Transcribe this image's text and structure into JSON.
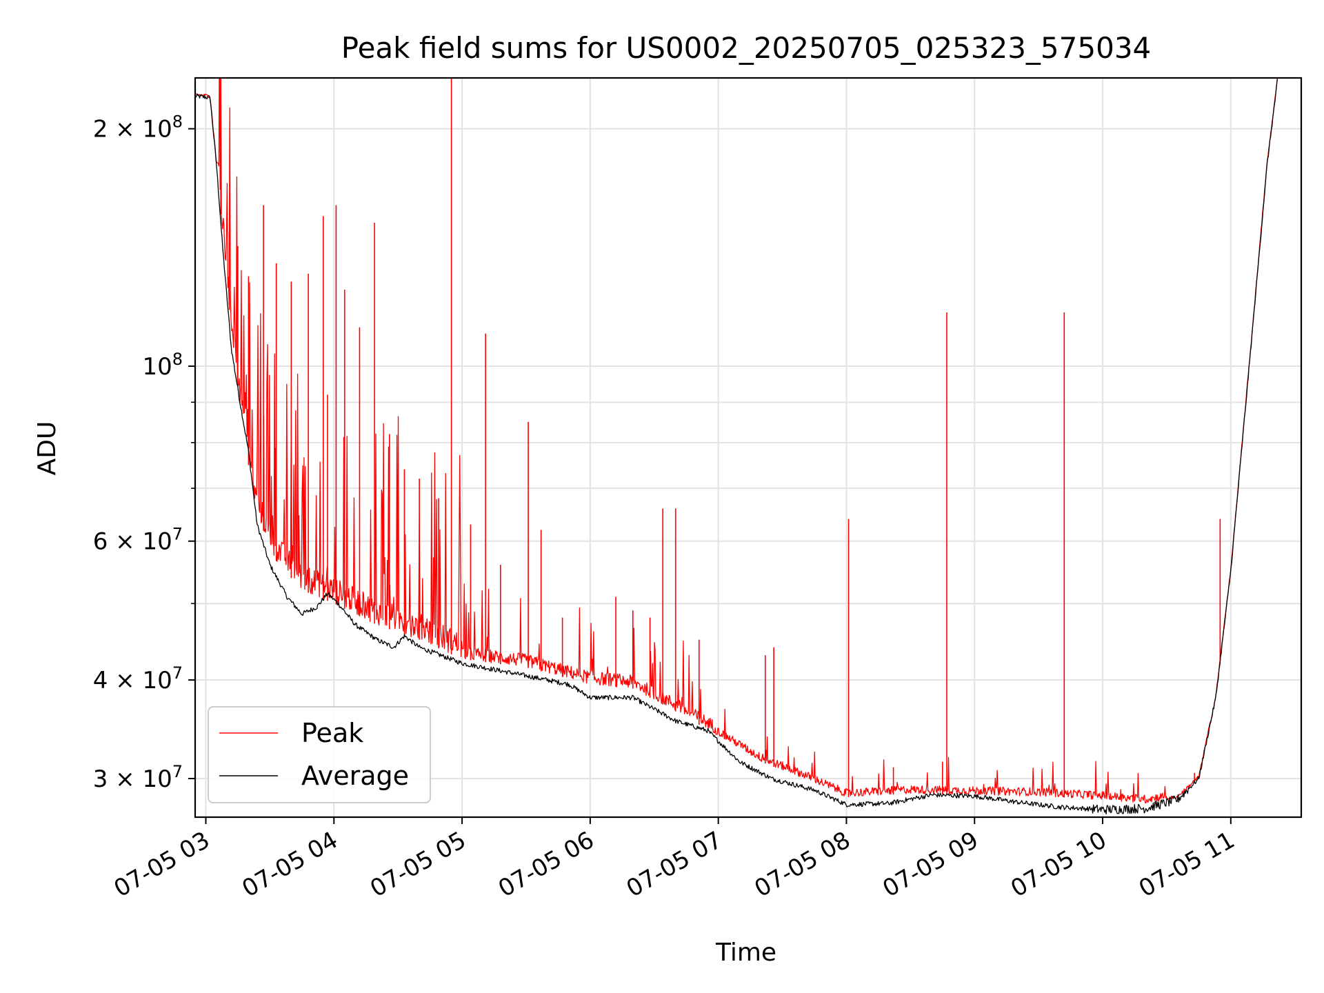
{
  "chart_data": {
    "type": "line",
    "title": "Peak field sums for US0002_20250705_025323_575034",
    "xlabel": "Time",
    "ylabel": "ADU",
    "y_scale": "log",
    "ylim": [
      26800000,
      232000000
    ],
    "xlim": [
      "2025-07-05 02:55",
      "2025-07-05 11:33"
    ],
    "x_tick_labels": [
      "07-05 03",
      "07-05 04",
      "07-05 05",
      "07-05 06",
      "07-05 07",
      "07-05 08",
      "07-05 09",
      "07-05 10",
      "07-05 11"
    ],
    "x_tick_values": [
      "2025-07-05 03:00",
      "2025-07-05 04:00",
      "2025-07-05 05:00",
      "2025-07-05 06:00",
      "2025-07-05 07:00",
      "2025-07-05 08:00",
      "2025-07-05 09:00",
      "2025-07-05 10:00",
      "2025-07-05 11:00"
    ],
    "y_tick_labels": [
      {
        "value": 200000000,
        "mant": "2",
        "exp": "8"
      },
      {
        "value": 100000000,
        "mant": "",
        "exp": "8"
      },
      {
        "value": 60000000,
        "mant": "6",
        "exp": "7"
      },
      {
        "value": 40000000,
        "mant": "4",
        "exp": "7"
      },
      {
        "value": 30000000,
        "mant": "3",
        "exp": "7"
      }
    ],
    "grid": true,
    "legend_position": "lower-left",
    "series": [
      {
        "name": "Peak",
        "color": "#ff0000",
        "baseline_points": [
          [
            "2025-07-05 02:55",
            220000000
          ],
          [
            "2025-07-05 03:02",
            219000000
          ],
          [
            "2025-07-05 03:05",
            180000000
          ],
          [
            "2025-07-05 03:08",
            145000000
          ],
          [
            "2025-07-05 03:12",
            110000000
          ],
          [
            "2025-07-05 03:17",
            85000000
          ],
          [
            "2025-07-05 03:23",
            66000000
          ],
          [
            "2025-07-05 03:32",
            57000000
          ],
          [
            "2025-07-05 03:45",
            52000000
          ],
          [
            "2025-07-05 04:00",
            50000000
          ],
          [
            "2025-07-05 04:20",
            47000000
          ],
          [
            "2025-07-05 04:40",
            45000000
          ],
          [
            "2025-07-05 05:00",
            42500000
          ],
          [
            "2025-07-05 05:30",
            41500000
          ],
          [
            "2025-07-05 06:00",
            39500000
          ],
          [
            "2025-07-05 06:20",
            39000000
          ],
          [
            "2025-07-05 06:40",
            36500000
          ],
          [
            "2025-07-05 07:00",
            34000000
          ],
          [
            "2025-07-05 07:20",
            31500000
          ],
          [
            "2025-07-05 07:40",
            30000000
          ],
          [
            "2025-07-05 08:00",
            28400000
          ],
          [
            "2025-07-05 08:30",
            28700000
          ],
          [
            "2025-07-05 09:00",
            28600000
          ],
          [
            "2025-07-05 09:30",
            28500000
          ],
          [
            "2025-07-05 10:00",
            28200000
          ],
          [
            "2025-07-05 10:20",
            27900000
          ],
          [
            "2025-07-05 10:35",
            28300000
          ],
          [
            "2025-07-05 10:45",
            30000000
          ],
          [
            "2025-07-05 10:53",
            38000000
          ],
          [
            "2025-07-05 11:00",
            55000000
          ],
          [
            "2025-07-05 11:10",
            110000000
          ],
          [
            "2025-07-05 11:17",
            180000000
          ],
          [
            "2025-07-05 11:22",
            232000000
          ]
        ],
        "spikes": [
          [
            "2025-07-05 03:07",
            205000000
          ],
          [
            "2025-07-05 03:11",
            148000000
          ],
          [
            "2025-07-05 03:15",
            142000000
          ],
          [
            "2025-07-05 03:20",
            130000000
          ],
          [
            "2025-07-05 03:27",
            160000000
          ],
          [
            "2025-07-05 03:33",
            135000000
          ],
          [
            "2025-07-05 03:40",
            128000000
          ],
          [
            "2025-07-05 03:48",
            131000000
          ],
          [
            "2025-07-05 03:55",
            155000000
          ],
          [
            "2025-07-05 03:57",
            92000000
          ],
          [
            "2025-07-05 04:01",
            160000000
          ],
          [
            "2025-07-05 04:05",
            125000000
          ],
          [
            "2025-07-05 04:12",
            112000000
          ],
          [
            "2025-07-05 04:19",
            152000000
          ],
          [
            "2025-07-05 04:26",
            82000000
          ],
          [
            "2025-07-05 04:33",
            74000000
          ],
          [
            "2025-07-05 04:40",
            72000000
          ],
          [
            "2025-07-05 04:49",
            68000000
          ],
          [
            "2025-07-05 04:55",
            232000000
          ],
          [
            "2025-07-05 05:04",
            63000000
          ],
          [
            "2025-07-05 05:11",
            110000000
          ],
          [
            "2025-07-05 05:18",
            56000000
          ],
          [
            "2025-07-05 05:31",
            85000000
          ],
          [
            "2025-07-05 05:37",
            62000000
          ],
          [
            "2025-07-05 05:47",
            48000000
          ],
          [
            "2025-07-05 06:12",
            51000000
          ],
          [
            "2025-07-05 06:20",
            49000000
          ],
          [
            "2025-07-05 06:28",
            48000000
          ],
          [
            "2025-07-05 06:34",
            66000000
          ],
          [
            "2025-07-05 06:40",
            66000000
          ],
          [
            "2025-07-05 06:51",
            45000000
          ],
          [
            "2025-07-05 07:22",
            43000000
          ],
          [
            "2025-07-05 07:26",
            44000000
          ],
          [
            "2025-07-05 08:01",
            64000000
          ],
          [
            "2025-07-05 08:22",
            31000000
          ],
          [
            "2025-07-05 08:45",
            31500000
          ],
          [
            "2025-07-05 08:47",
            117000000
          ],
          [
            "2025-07-05 09:42",
            117000000
          ],
          [
            "2025-07-05 10:43",
            30500000
          ],
          [
            "2025-07-05 10:55",
            64000000
          ]
        ]
      },
      {
        "name": "Average",
        "color": "#000000",
        "points": [
          [
            "2025-07-05 02:55",
            220000000
          ],
          [
            "2025-07-05 03:02",
            219000000
          ],
          [
            "2025-07-05 03:05",
            180000000
          ],
          [
            "2025-07-05 03:08",
            140000000
          ],
          [
            "2025-07-05 03:12",
            105000000
          ],
          [
            "2025-07-05 03:16",
            90000000
          ],
          [
            "2025-07-05 03:20",
            78000000
          ],
          [
            "2025-07-05 03:24",
            63000000
          ],
          [
            "2025-07-05 03:30",
            56000000
          ],
          [
            "2025-07-05 03:38",
            51000000
          ],
          [
            "2025-07-05 03:45",
            48500000
          ],
          [
            "2025-07-05 03:52",
            49500000
          ],
          [
            "2025-07-05 03:57",
            51500000
          ],
          [
            "2025-07-05 04:02",
            50000000
          ],
          [
            "2025-07-05 04:10",
            47000000
          ],
          [
            "2025-07-05 04:20",
            45000000
          ],
          [
            "2025-07-05 04:28",
            44000000
          ],
          [
            "2025-07-05 04:33",
            45500000
          ],
          [
            "2025-07-05 04:40",
            44000000
          ],
          [
            "2025-07-05 05:00",
            42000000
          ],
          [
            "2025-07-05 05:30",
            40500000
          ],
          [
            "2025-07-05 05:50",
            39500000
          ],
          [
            "2025-07-05 06:00",
            38000000
          ],
          [
            "2025-07-05 06:20",
            38000000
          ],
          [
            "2025-07-05 06:40",
            35500000
          ],
          [
            "2025-07-05 06:55",
            34500000
          ],
          [
            "2025-07-05 07:10",
            31500000
          ],
          [
            "2025-07-05 07:25",
            30000000
          ],
          [
            "2025-07-05 07:45",
            29000000
          ],
          [
            "2025-07-05 08:00",
            27800000
          ],
          [
            "2025-07-05 08:20",
            27900000
          ],
          [
            "2025-07-05 08:40",
            28600000
          ],
          [
            "2025-07-05 09:00",
            28500000
          ],
          [
            "2025-07-05 09:20",
            28000000
          ],
          [
            "2025-07-05 09:40",
            27600000
          ],
          [
            "2025-07-05 10:00",
            27400000
          ],
          [
            "2025-07-05 10:20",
            27500000
          ],
          [
            "2025-07-05 10:35",
            28200000
          ],
          [
            "2025-07-05 10:45",
            30000000
          ],
          [
            "2025-07-05 10:53",
            38000000
          ],
          [
            "2025-07-05 11:00",
            55000000
          ],
          [
            "2025-07-05 11:10",
            110000000
          ],
          [
            "2025-07-05 11:17",
            180000000
          ],
          [
            "2025-07-05 11:22",
            232000000
          ]
        ]
      }
    ]
  }
}
